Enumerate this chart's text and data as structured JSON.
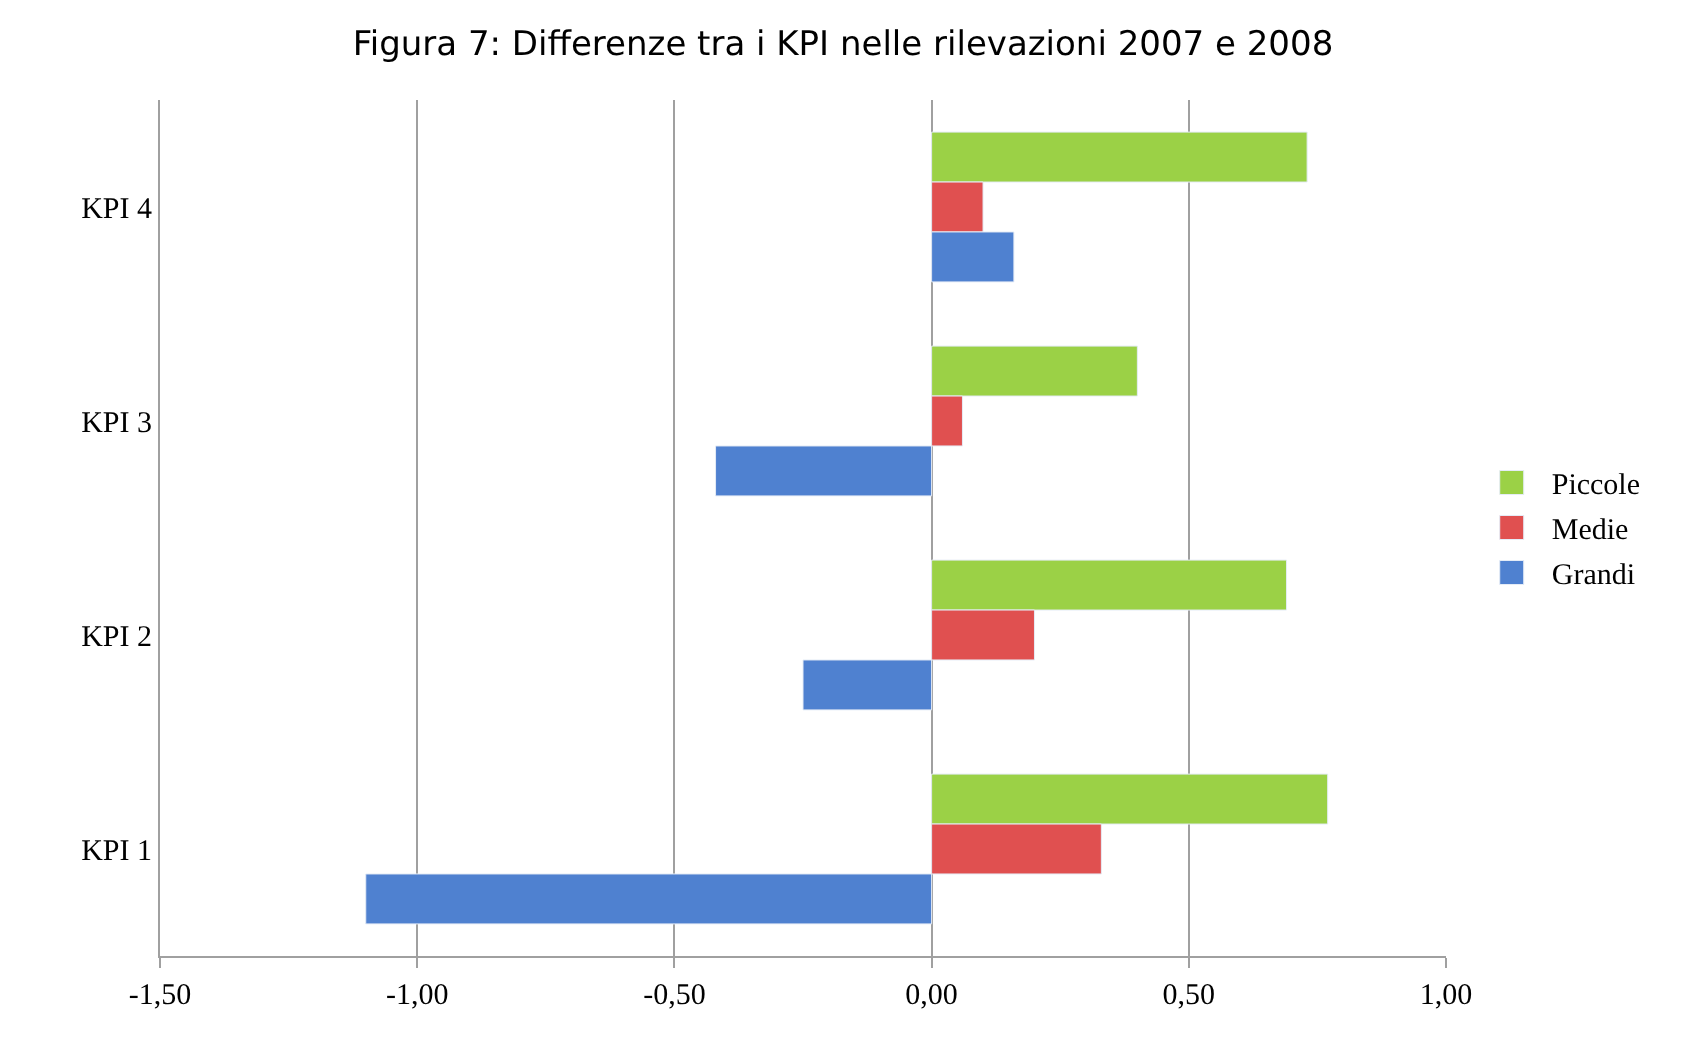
{
  "chart_data": {
    "type": "bar",
    "orientation": "horizontal",
    "title": "Figura 7: Differenze tra i KPI nelle rilevazioni 2007 e 2008",
    "categories": [
      "KPI 4",
      "KPI 3",
      "KPI 2",
      "KPI 1"
    ],
    "series": [
      {
        "name": "Piccole",
        "color": "#9bd146",
        "values": [
          0.73,
          0.4,
          0.69,
          0.77
        ]
      },
      {
        "name": "Medie",
        "color": "#e05050",
        "values": [
          0.1,
          0.06,
          0.2,
          0.33
        ]
      },
      {
        "name": "Grandi",
        "color": "#4f81d0",
        "values": [
          0.16,
          -0.42,
          -0.25,
          -1.1
        ]
      }
    ],
    "xlim": [
      -1.5,
      1.0
    ],
    "xticks": [
      {
        "value": -1.5,
        "label": "-1,50"
      },
      {
        "value": -1.0,
        "label": "-1,00"
      },
      {
        "value": -0.5,
        "label": "-0,50"
      },
      {
        "value": 0.0,
        "label": "0,00"
      },
      {
        "value": 0.5,
        "label": "0,50"
      },
      {
        "value": 1.0,
        "label": "1,00"
      }
    ],
    "grid": "x",
    "legend": "right"
  }
}
